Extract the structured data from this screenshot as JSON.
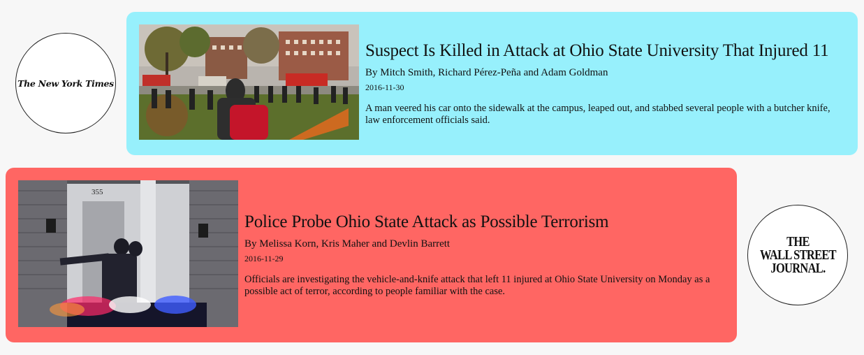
{
  "articles": [
    {
      "source": "The New York Times",
      "headline": "Suspect Is Killed in Attack at Ohio State University That Injured 11",
      "byline": "By Mitch Smith, Richard Pérez-Peña and Adam Goldman",
      "date": "2016-11-30",
      "summary": "A man veered his car onto the sidewalk at the campus, leaped out, and stabbed several people with a butcher knife, law enforcement officials said.",
      "background_color": "#97f0fc"
    },
    {
      "source": "The Wall Street Journal",
      "source_logo_lines": [
        "THE",
        "WALL STREET",
        "JOURNAL."
      ],
      "headline": "Police Probe Ohio State Attack as Possible Terrorism",
      "byline": "By Melissa Korn, Kris Maher and Devlin Barrett",
      "date": "2016-11-29",
      "summary": "Officials are investigating the vehicle-and-knife attack that left 11 injured at Ohio State University on Monday as a possible act of terror, according to people familiar with the case.",
      "house_number": "355",
      "background_color": "#ff6663"
    }
  ]
}
